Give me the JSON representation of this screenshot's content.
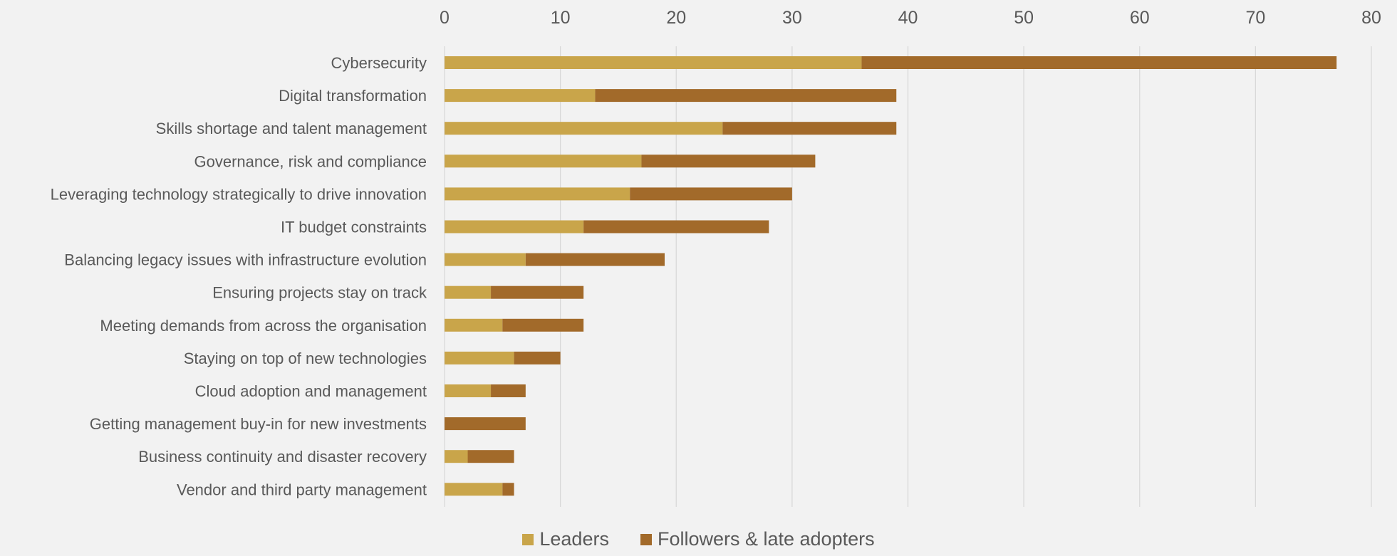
{
  "chart_data": {
    "type": "bar",
    "orientation": "horizontal",
    "stacked": true,
    "title": "",
    "xlabel": "",
    "ylabel": "",
    "xlim": [
      0,
      80
    ],
    "ticks": [
      0,
      10,
      20,
      30,
      40,
      50,
      60,
      70,
      80
    ],
    "grid": true,
    "axis_position": "top",
    "legend_position": "bottom",
    "categories": [
      "Cybersecurity",
      "Digital transformation",
      "Skills shortage and talent management",
      "Governance, risk and compliance",
      "Leveraging technology strategically to drive innovation",
      "IT budget constraints",
      "Balancing legacy issues with infrastructure evolution",
      "Ensuring projects stay on track",
      "Meeting demands from across the organisation",
      "Staying on top of new technologies",
      "Cloud adoption and management",
      "Getting management buy-in for new investments",
      "Business continuity and disaster recovery",
      "Vendor and third party management"
    ],
    "series": [
      {
        "name": "Leaders",
        "color": "#c9a54a",
        "values": [
          36,
          13,
          24,
          17,
          16,
          12,
          7,
          4,
          5,
          6,
          4,
          0,
          2,
          5
        ]
      },
      {
        "name": "Followers & late adopters",
        "color": "#a26a2a",
        "values": [
          41,
          26,
          15,
          15,
          14,
          16,
          12,
          8,
          7,
          4,
          3,
          7,
          4,
          1
        ]
      }
    ]
  }
}
